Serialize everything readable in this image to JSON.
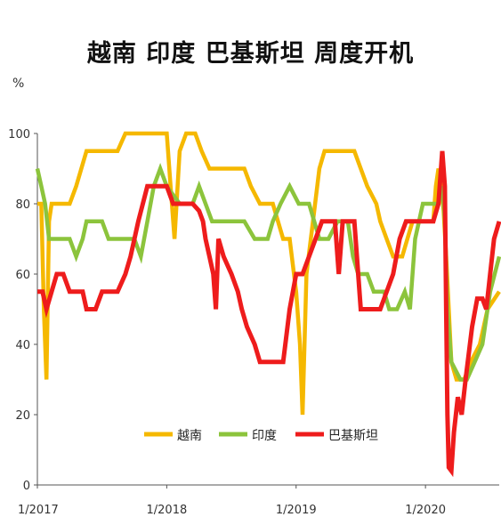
{
  "title": "越南 印度 巴基斯坦 周度开机",
  "unit": "%",
  "chart_data": {
    "type": "line",
    "title": "越南 印度 巴基斯坦 周度开机",
    "ylabel": "%",
    "xlabel": "",
    "ylim": [
      0,
      100
    ],
    "y_ticks": [
      "0",
      "20",
      "40",
      "60",
      "80",
      "100"
    ],
    "x_ticks": [
      "1/2017",
      "1/2018",
      "1/2019",
      "1/2020"
    ],
    "xlim": [
      2017.0,
      2020.57
    ],
    "grid": false,
    "legend_placement": "bottom-center",
    "series": [
      {
        "name": "越南",
        "color": "#f5b800",
        "points": [
          [
            2017.0,
            80
          ],
          [
            2017.03,
            80
          ],
          [
            2017.05,
            50
          ],
          [
            2017.07,
            30
          ],
          [
            2017.09,
            75
          ],
          [
            2017.11,
            80
          ],
          [
            2017.25,
            80
          ],
          [
            2017.3,
            85
          ],
          [
            2017.38,
            95
          ],
          [
            2017.45,
            95
          ],
          [
            2017.5,
            95
          ],
          [
            2017.62,
            95
          ],
          [
            2017.68,
            100
          ],
          [
            2017.95,
            100
          ],
          [
            2018.0,
            100
          ],
          [
            2018.03,
            85
          ],
          [
            2018.06,
            70
          ],
          [
            2018.1,
            95
          ],
          [
            2018.15,
            100
          ],
          [
            2018.22,
            100
          ],
          [
            2018.27,
            95
          ],
          [
            2018.33,
            90
          ],
          [
            2018.6,
            90
          ],
          [
            2018.65,
            85
          ],
          [
            2018.72,
            80
          ],
          [
            2018.82,
            80
          ],
          [
            2018.9,
            70
          ],
          [
            2018.95,
            70
          ],
          [
            2019.0,
            55
          ],
          [
            2019.03,
            40
          ],
          [
            2019.05,
            20
          ],
          [
            2019.08,
            60
          ],
          [
            2019.13,
            75
          ],
          [
            2019.18,
            90
          ],
          [
            2019.22,
            95
          ],
          [
            2019.45,
            95
          ],
          [
            2019.5,
            90
          ],
          [
            2019.55,
            85
          ],
          [
            2019.62,
            80
          ],
          [
            2019.65,
            75
          ],
          [
            2019.7,
            70
          ],
          [
            2019.75,
            65
          ],
          [
            2019.82,
            65
          ],
          [
            2019.86,
            70
          ],
          [
            2019.9,
            75
          ],
          [
            2019.98,
            75
          ],
          [
            2020.06,
            75
          ],
          [
            2020.08,
            85
          ],
          [
            2020.1,
            90
          ],
          [
            2020.12,
            85
          ],
          [
            2020.14,
            78
          ],
          [
            2020.16,
            65
          ],
          [
            2020.18,
            50
          ],
          [
            2020.2,
            35
          ],
          [
            2020.24,
            30
          ],
          [
            2020.3,
            30
          ],
          [
            2020.35,
            35
          ],
          [
            2020.42,
            40
          ],
          [
            2020.48,
            50
          ],
          [
            2020.57,
            55
          ]
        ]
      },
      {
        "name": "印度",
        "color": "#8cc43c",
        "points": [
          [
            2017.0,
            90
          ],
          [
            2017.03,
            85
          ],
          [
            2017.06,
            80
          ],
          [
            2017.09,
            70
          ],
          [
            2017.25,
            70
          ],
          [
            2017.3,
            65
          ],
          [
            2017.35,
            70
          ],
          [
            2017.38,
            75
          ],
          [
            2017.5,
            75
          ],
          [
            2017.55,
            70
          ],
          [
            2017.75,
            70
          ],
          [
            2017.8,
            65
          ],
          [
            2017.85,
            75
          ],
          [
            2017.9,
            85
          ],
          [
            2017.95,
            90
          ],
          [
            2018.0,
            85
          ],
          [
            2018.1,
            80
          ],
          [
            2018.2,
            80
          ],
          [
            2018.25,
            85
          ],
          [
            2018.3,
            80
          ],
          [
            2018.35,
            75
          ],
          [
            2018.6,
            75
          ],
          [
            2018.68,
            70
          ],
          [
            2018.78,
            70
          ],
          [
            2018.82,
            75
          ],
          [
            2018.88,
            80
          ],
          [
            2018.95,
            85
          ],
          [
            2019.02,
            80
          ],
          [
            2019.1,
            80
          ],
          [
            2019.18,
            70
          ],
          [
            2019.25,
            70
          ],
          [
            2019.32,
            75
          ],
          [
            2019.4,
            75
          ],
          [
            2019.44,
            65
          ],
          [
            2019.48,
            60
          ],
          [
            2019.55,
            60
          ],
          [
            2019.6,
            55
          ],
          [
            2019.68,
            55
          ],
          [
            2019.72,
            50
          ],
          [
            2019.78,
            50
          ],
          [
            2019.84,
            55
          ],
          [
            2019.88,
            50
          ],
          [
            2019.92,
            70
          ],
          [
            2019.98,
            80
          ],
          [
            2020.05,
            80
          ],
          [
            2020.1,
            80
          ],
          [
            2020.13,
            85
          ],
          [
            2020.15,
            75
          ],
          [
            2020.17,
            50
          ],
          [
            2020.2,
            35
          ],
          [
            2020.27,
            30
          ],
          [
            2020.32,
            30
          ],
          [
            2020.38,
            35
          ],
          [
            2020.44,
            40
          ],
          [
            2020.5,
            55
          ],
          [
            2020.57,
            65
          ]
        ]
      },
      {
        "name": "巴基斯坦",
        "color": "#ee1c1c",
        "points": [
          [
            2017.0,
            55
          ],
          [
            2017.04,
            55
          ],
          [
            2017.07,
            50
          ],
          [
            2017.11,
            55
          ],
          [
            2017.15,
            60
          ],
          [
            2017.2,
            60
          ],
          [
            2017.25,
            55
          ],
          [
            2017.3,
            55
          ],
          [
            2017.35,
            55
          ],
          [
            2017.38,
            50
          ],
          [
            2017.45,
            50
          ],
          [
            2017.5,
            55
          ],
          [
            2017.62,
            55
          ],
          [
            2017.68,
            60
          ],
          [
            2017.72,
            65
          ],
          [
            2017.78,
            75
          ],
          [
            2017.85,
            85
          ],
          [
            2017.95,
            85
          ],
          [
            2018.0,
            85
          ],
          [
            2018.05,
            80
          ],
          [
            2018.2,
            80
          ],
          [
            2018.25,
            78
          ],
          [
            2018.28,
            75
          ],
          [
            2018.3,
            70
          ],
          [
            2018.33,
            65
          ],
          [
            2018.36,
            60
          ],
          [
            2018.38,
            50
          ],
          [
            2018.4,
            70
          ],
          [
            2018.44,
            65
          ],
          [
            2018.5,
            60
          ],
          [
            2018.55,
            55
          ],
          [
            2018.58,
            50
          ],
          [
            2018.62,
            45
          ],
          [
            2018.68,
            40
          ],
          [
            2018.72,
            35
          ],
          [
            2018.9,
            35
          ],
          [
            2018.95,
            50
          ],
          [
            2019.0,
            60
          ],
          [
            2019.05,
            60
          ],
          [
            2019.1,
            65
          ],
          [
            2019.15,
            70
          ],
          [
            2019.2,
            75
          ],
          [
            2019.3,
            75
          ],
          [
            2019.33,
            60
          ],
          [
            2019.36,
            75
          ],
          [
            2019.45,
            75
          ],
          [
            2019.5,
            50
          ],
          [
            2019.65,
            50
          ],
          [
            2019.7,
            55
          ],
          [
            2019.75,
            60
          ],
          [
            2019.8,
            70
          ],
          [
            2019.85,
            75
          ],
          [
            2019.98,
            75
          ],
          [
            2020.06,
            75
          ],
          [
            2020.1,
            80
          ],
          [
            2020.13,
            95
          ],
          [
            2020.15,
            85
          ],
          [
            2020.16,
            50
          ],
          [
            2020.17,
            20
          ],
          [
            2020.18,
            5
          ],
          [
            2020.2,
            4
          ],
          [
            2020.22,
            15
          ],
          [
            2020.25,
            25
          ],
          [
            2020.28,
            20
          ],
          [
            2020.31,
            30
          ],
          [
            2020.36,
            45
          ],
          [
            2020.4,
            53
          ],
          [
            2020.44,
            53
          ],
          [
            2020.47,
            50
          ],
          [
            2020.5,
            60
          ],
          [
            2020.53,
            70
          ],
          [
            2020.57,
            75
          ]
        ]
      }
    ]
  }
}
